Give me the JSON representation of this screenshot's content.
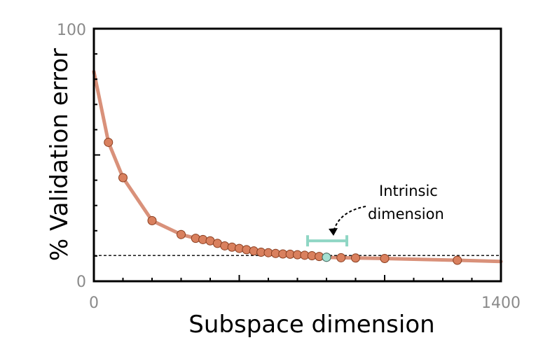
{
  "chart_data": {
    "type": "line",
    "xlabel": "Subspace dimension",
    "ylabel": "% Validation error",
    "xlim": [
      0,
      1400
    ],
    "ylim": [
      0,
      100
    ],
    "x_tick_labels": [
      "0",
      "1400"
    ],
    "y_tick_labels": [
      "0",
      "100"
    ],
    "grid": false,
    "series": [
      {
        "line_x": [
          0,
          50,
          100,
          200,
          300,
          350,
          375,
          400,
          425,
          450,
          475,
          500,
          525,
          550,
          575,
          600,
          625,
          650,
          675,
          700,
          725,
          750,
          775,
          800,
          850,
          900,
          1000,
          1250,
          1400
        ],
        "line_y": [
          83,
          55,
          41,
          24,
          18.5,
          17,
          16.5,
          16,
          15,
          14,
          13.5,
          13,
          12.5,
          12,
          11.5,
          11.3,
          11,
          10.8,
          10.7,
          10.5,
          10.3,
          10.1,
          9.8,
          9.5,
          9.3,
          9.2,
          9.0,
          8.3,
          7.8
        ],
        "points_x": [
          50,
          100,
          200,
          300,
          350,
          375,
          400,
          425,
          450,
          475,
          500,
          525,
          550,
          575,
          600,
          625,
          650,
          675,
          700,
          725,
          750,
          775,
          800,
          850,
          900,
          1000,
          1250
        ],
        "points_y": [
          55,
          41,
          24,
          18.5,
          17,
          16.5,
          16,
          15,
          14,
          13.5,
          13,
          12.5,
          12,
          11.5,
          11.3,
          11,
          10.8,
          10.7,
          10.5,
          10.3,
          10.1,
          9.8,
          9.5,
          9.3,
          9.2,
          9.0,
          8.3
        ],
        "intrinsic_point": {
          "x": 800,
          "y": 9.5
        }
      }
    ],
    "threshold_line_y": 10.2,
    "interval_x": [
      735,
      870
    ],
    "interval_y": 16,
    "annotation": [
      "Intrinsic",
      "dimension"
    ],
    "colors": {
      "line": "#d9917a",
      "point_fill": "#d9805e",
      "point_stroke": "#8a3e20",
      "intrinsic_fill": "#a5e0d2",
      "interval": "#8fd6c4",
      "threshold": "#000000",
      "axis": "#000000",
      "tick_label": "#8a8a8a"
    }
  }
}
